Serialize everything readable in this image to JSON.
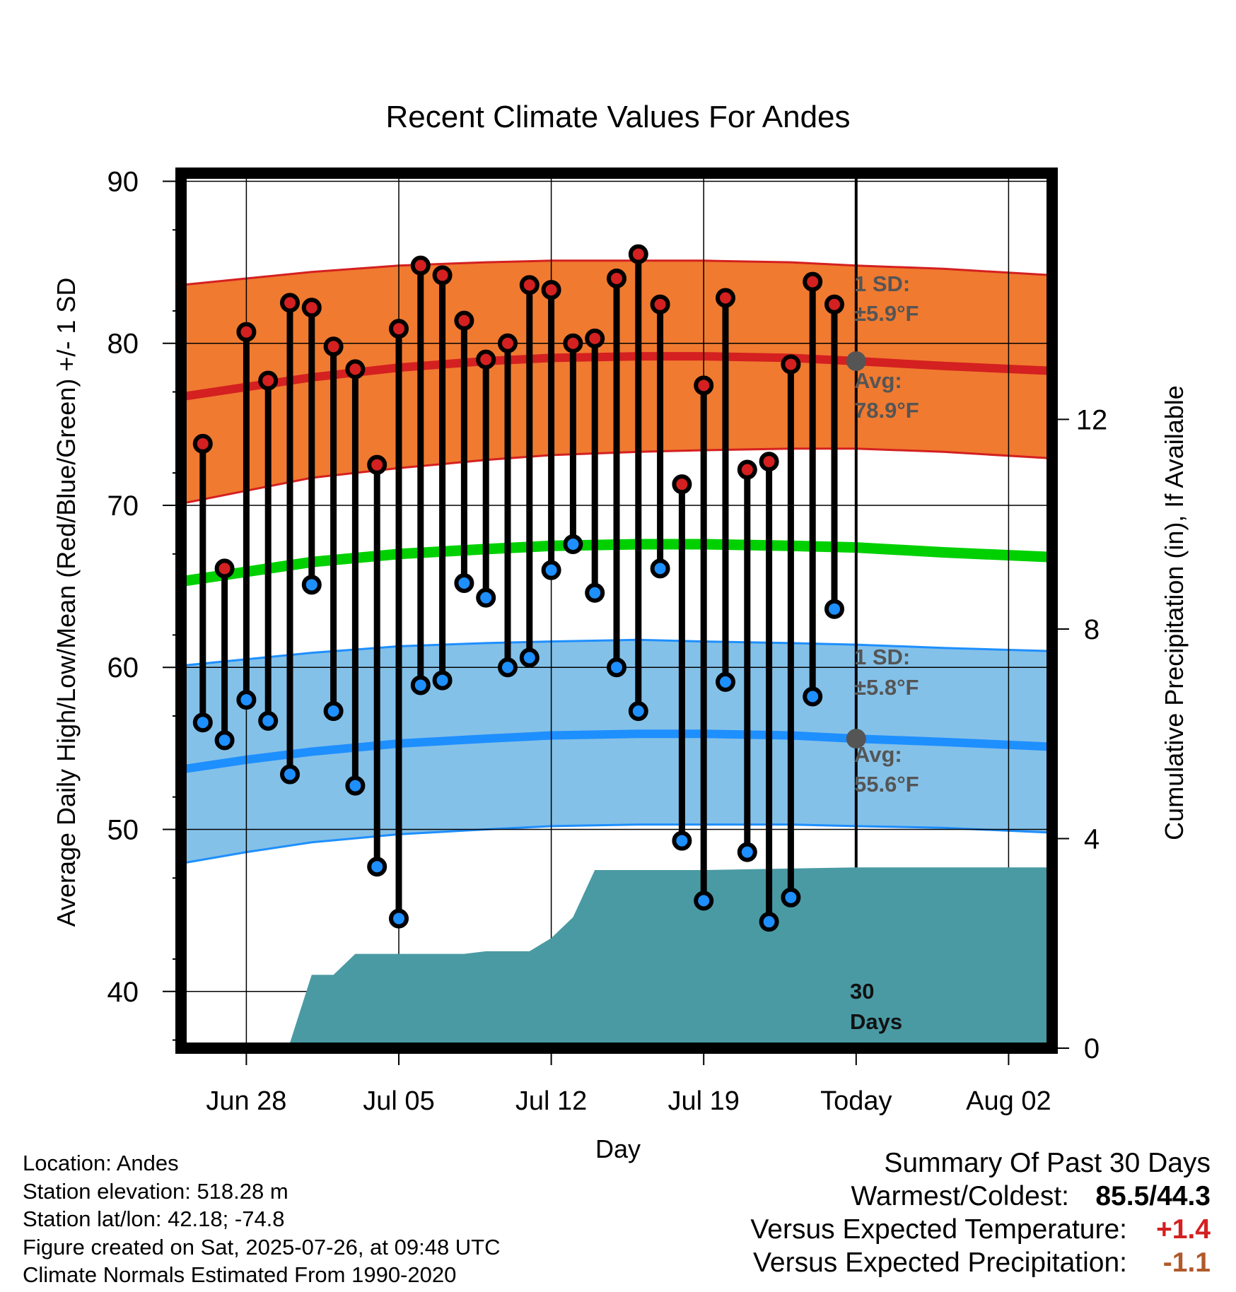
{
  "title": "Recent Climate Values For Andes",
  "ylabel_left": "Average Daily High/Low/Mean (Red/Blue/Green) +/- 1 SD",
  "ylabel_right": "Cumulative Precipitation (in), If Available",
  "xlabel": "Day",
  "annotations": {
    "high_sd_label": "1 SD:",
    "high_sd_value": "±5.9°F",
    "high_avg_label": "Avg:",
    "high_avg_value": "78.9°F",
    "low_sd_label": "1 SD:",
    "low_sd_value": "±5.8°F",
    "low_avg_label": "Avg:",
    "low_avg_value": "55.6°F",
    "days_count": "30",
    "days_word": "Days"
  },
  "footer": {
    "location": "Location: Andes",
    "elevation": "Station elevation: 518.28 m",
    "latlon": "Station lat/lon: 42.18; -74.8",
    "created": "Figure created on Sat, 2025-07-26, at 09:48 UTC",
    "normals": "Climate Normals Estimated From 1990-2020"
  },
  "summary": {
    "heading": "Summary Of Past 30 Days",
    "warm_cold_label": "Warmest/Coldest:",
    "warm_cold_value": "85.5/44.3",
    "temp_label": "Versus Expected Temperature:",
    "temp_value": "+1.4",
    "precip_label": "Versus Expected Precipitation:",
    "precip_value": "-1.1"
  },
  "colors": {
    "high": "#d42020",
    "high_band": "#f07a30",
    "low": "#1e8fff",
    "low_band": "#84c1e8",
    "mean": "#00d000",
    "precip": "#4a9aa4",
    "temp_summary": "#d42020",
    "precip_summary": "#b05a2a",
    "annotation": "#555555"
  },
  "chart_data": {
    "type": "line",
    "xlabel": "Day",
    "ylabel": "Average Daily High/Low/Mean (Red/Blue/Green) +/- 1 SD",
    "ylabel_right": "Cumulative Precipitation (in), If Available",
    "x_range": [
      "2025-06-25",
      "2025-08-04"
    ],
    "x_tick_labels": [
      "Jun 28",
      "Jul 05",
      "Jul 12",
      "Jul 19",
      "Today",
      "Aug 02"
    ],
    "x_ticks": [
      "2025-06-28",
      "2025-07-05",
      "2025-07-12",
      "2025-07-19",
      "2025-07-26",
      "2025-08-02"
    ],
    "ylim": [
      36.5,
      90.5
    ],
    "y_ticks": [
      40,
      50,
      60,
      70,
      80,
      90
    ],
    "ylim_right": [
      0,
      16.7
    ],
    "y_ticks_right": [
      0,
      4,
      8,
      12
    ],
    "today": "2025-07-26",
    "dates": [
      "2025-06-26",
      "2025-06-27",
      "2025-06-28",
      "2025-06-29",
      "2025-06-30",
      "2025-07-01",
      "2025-07-02",
      "2025-07-03",
      "2025-07-04",
      "2025-07-05",
      "2025-07-06",
      "2025-07-07",
      "2025-07-08",
      "2025-07-09",
      "2025-07-10",
      "2025-07-11",
      "2025-07-12",
      "2025-07-13",
      "2025-07-14",
      "2025-07-15",
      "2025-07-16",
      "2025-07-17",
      "2025-07-18",
      "2025-07-19",
      "2025-07-20",
      "2025-07-21",
      "2025-07-22",
      "2025-07-23",
      "2025-07-24",
      "2025-07-25"
    ],
    "observed_high": [
      73.8,
      66.1,
      80.7,
      77.7,
      82.5,
      82.2,
      79.8,
      78.4,
      72.5,
      80.9,
      84.8,
      84.2,
      81.4,
      79.0,
      80.0,
      83.6,
      83.3,
      80.0,
      80.3,
      84.0,
      85.5,
      82.4,
      71.3,
      77.4,
      82.8,
      72.2,
      72.7,
      78.7,
      83.8,
      82.4
    ],
    "observed_low": [
      56.6,
      55.5,
      58.0,
      56.7,
      53.4,
      65.1,
      57.3,
      52.7,
      47.7,
      44.5,
      58.9,
      59.2,
      65.2,
      64.3,
      60.0,
      60.6,
      66.0,
      67.6,
      64.6,
      60.0,
      57.3,
      66.1,
      49.3,
      45.6,
      59.1,
      48.6,
      44.3,
      45.8,
      58.2,
      63.6
    ],
    "normal_dates": [
      "2025-06-25",
      "2025-06-28",
      "2025-07-01",
      "2025-07-05",
      "2025-07-09",
      "2025-07-12",
      "2025-07-16",
      "2025-07-19",
      "2025-07-23",
      "2025-07-26",
      "2025-07-30",
      "2025-08-04"
    ],
    "normal_high": [
      76.7,
      77.3,
      77.9,
      78.5,
      78.9,
      79.1,
      79.2,
      79.2,
      79.1,
      78.9,
      78.6,
      78.3
    ],
    "normal_high_minus_sd": [
      70.1,
      70.9,
      71.7,
      72.3,
      72.8,
      73.1,
      73.3,
      73.4,
      73.5,
      73.5,
      73.3,
      72.9
    ],
    "normal_high_plus_sd": [
      83.6,
      84.0,
      84.4,
      84.8,
      85.0,
      85.1,
      85.1,
      85.1,
      85.0,
      84.8,
      84.6,
      84.2
    ],
    "normal_mean": [
      65.3,
      65.9,
      66.5,
      67.0,
      67.3,
      67.5,
      67.6,
      67.6,
      67.5,
      67.4,
      67.1,
      66.8
    ],
    "normal_low": [
      53.7,
      54.3,
      54.8,
      55.3,
      55.6,
      55.8,
      55.9,
      55.9,
      55.8,
      55.6,
      55.4,
      55.1
    ],
    "normal_low_minus_sd": [
      47.9,
      48.6,
      49.2,
      49.7,
      50.0,
      50.2,
      50.3,
      50.3,
      50.3,
      50.2,
      50.1,
      49.8
    ],
    "normal_low_plus_sd": [
      60.1,
      60.5,
      60.9,
      61.3,
      61.5,
      61.6,
      61.7,
      61.6,
      61.5,
      61.4,
      61.2,
      61.0
    ],
    "precip_dates": [
      "2025-06-25",
      "2025-06-29",
      "2025-06-30",
      "2025-07-01",
      "2025-07-02",
      "2025-07-03",
      "2025-07-05",
      "2025-07-08",
      "2025-07-09",
      "2025-07-11",
      "2025-07-12",
      "2025-07-13",
      "2025-07-14",
      "2025-07-19",
      "2025-07-26",
      "2025-08-04"
    ],
    "precip_cumulative": [
      0.0,
      0.0,
      0.1,
      1.4,
      1.4,
      1.8,
      1.8,
      1.8,
      1.85,
      1.85,
      2.1,
      2.5,
      3.4,
      3.4,
      3.45,
      3.45
    ],
    "today_normal_high": 78.9,
    "today_normal_low": 55.6
  }
}
